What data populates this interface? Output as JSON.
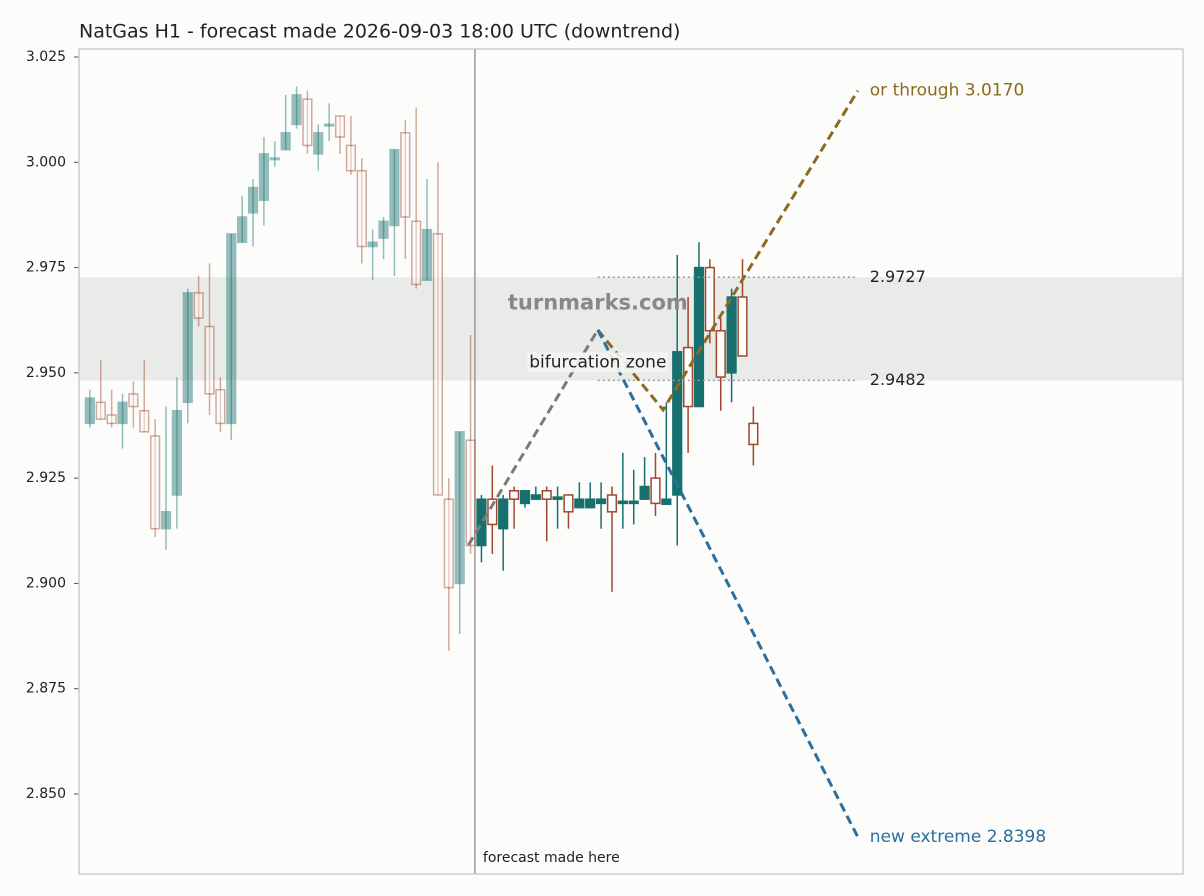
{
  "chart_data": {
    "type": "candlestick",
    "title": "NatGas H1 - forecast made 2026-09-03 18:00 UTC (downtrend)",
    "ylim": [
      2.831,
      3.0269
    ],
    "xlim": [
      -1,
      100.5
    ],
    "yticks": [
      {
        "value": 2.85,
        "label": "2.850"
      },
      2.875,
      {
        "value": 2.9,
        "label": "2.900"
      },
      2.925,
      {
        "value": 2.95,
        "label": "2.950"
      },
      2.975,
      {
        "value": 3,
        "label": "3.000"
      },
      3.025
    ],
    "forecast_at": 35.4,
    "forecast_label": "forecast made here",
    "up_color": "#17706e",
    "down_color": "#a0472d",
    "watermark": "turnmarks.com",
    "zone": {
      "label": "bifurcation zone",
      "low": 2.9482,
      "high": 2.9727
    },
    "open": [
      2.938,
      2.943,
      2.94,
      2.938,
      2.945,
      2.941,
      2.935,
      2.913,
      2.921,
      2.943,
      2.969,
      2.961,
      2.946,
      2.938,
      2.981,
      2.988,
      2.991,
      3.001,
      3.003,
      3.009,
      3.015,
      3.002,
      3.009,
      3.011,
      3.004,
      2.998,
      2.98,
      2.982,
      2.985,
      3.007,
      2.986,
      2.972,
      2.983,
      2.92,
      2.9,
      2.934,
      2.909,
      2.92,
      2.913,
      2.922,
      2.919,
      2.92,
      2.922,
      2.92,
      2.921,
      2.918,
      2.918,
      2.919,
      2.921,
      2.919,
      2.919,
      2.92,
      2.925,
      2.9188,
      2.921,
      2.956,
      2.942,
      2.975,
      2.96,
      2.95,
      2.968,
      2.938
    ],
    "high": [
      2.946,
      2.953,
      2.946,
      2.945,
      2.948,
      2.953,
      2.939,
      2.942,
      2.949,
      2.97,
      2.973,
      2.976,
      2.949,
      2.983,
      2.992,
      2.996,
      3.006,
      3.005,
      3.016,
      3.018,
      3.017,
      3.009,
      3.014,
      3.011,
      3.011,
      3.001,
      2.984,
      2.987,
      3.003,
      3.01,
      3.013,
      2.996,
      3.0,
      2.925,
      2.936,
      2.959,
      2.921,
      2.928,
      2.921,
      2.923,
      2.922,
      2.923,
      2.923,
      2.923,
      2.921,
      2.924,
      2.924,
      2.924,
      2.923,
      2.931,
      2.927,
      2.93,
      2.931,
      2.943,
      2.978,
      2.968,
      2.981,
      2.977,
      2.963,
      2.97,
      2.977,
      2.942
    ],
    "low": [
      2.937,
      2.939,
      2.937,
      2.932,
      2.937,
      2.936,
      2.911,
      2.908,
      2.913,
      2.938,
      2.961,
      2.94,
      2.936,
      2.934,
      2.981,
      2.98,
      2.985,
      2.999,
      3.003,
      3.008,
      3.002,
      2.998,
      3.005,
      3.002,
      2.997,
      2.976,
      2.972,
      2.977,
      2.973,
      2.977,
      2.97,
      2.972,
      2.921,
      2.884,
      2.888,
      2.907,
      2.905,
      2.907,
      2.903,
      2.913,
      2.918,
      2.92,
      2.91,
      2.913,
      2.913,
      2.918,
      2.918,
      2.913,
      2.898,
      2.913,
      2.914,
      2.92,
      2.916,
      2.919,
      2.909,
      2.931,
      2.942,
      2.957,
      2.941,
      2.943,
      2.954,
      2.928
    ],
    "close": [
      2.944,
      2.939,
      2.938,
      2.943,
      2.942,
      2.936,
      2.913,
      2.917,
      2.941,
      2.969,
      2.963,
      2.945,
      2.938,
      2.983,
      2.987,
      2.994,
      3.002,
      3.001,
      3.007,
      3.016,
      3.004,
      3.007,
      3.009,
      3.006,
      2.998,
      2.98,
      2.981,
      2.986,
      3.003,
      2.987,
      2.971,
      2.984,
      2.921,
      2.899,
      2.936,
      2.909,
      2.92,
      2.914,
      2.92,
      2.92,
      2.922,
      2.921,
      2.92,
      2.9205,
      2.917,
      2.92,
      2.92,
      2.92,
      2.917,
      2.9195,
      2.9195,
      2.923,
      2.919,
      2.92,
      2.955,
      2.942,
      2.975,
      2.96,
      2.949,
      2.968,
      2.954,
      2.933
    ],
    "series": [
      {
        "color": "#7a7a7a",
        "x": [
          34.8,
          46.7
        ],
        "values": [
          2.9091,
          2.9602
        ]
      },
      {
        "color": "#8c6a22",
        "label": "or through 3.0170",
        "x": [
          46.7,
          52.7,
          70.6
        ],
        "values": [
          2.9602,
          2.9412,
          3.017
        ]
      },
      {
        "color": "#2a6f9e",
        "label": "new extreme 2.8398",
        "x": [
          46.7,
          70.6
        ],
        "values": [
          2.9602,
          2.8398
        ]
      }
    ]
  }
}
